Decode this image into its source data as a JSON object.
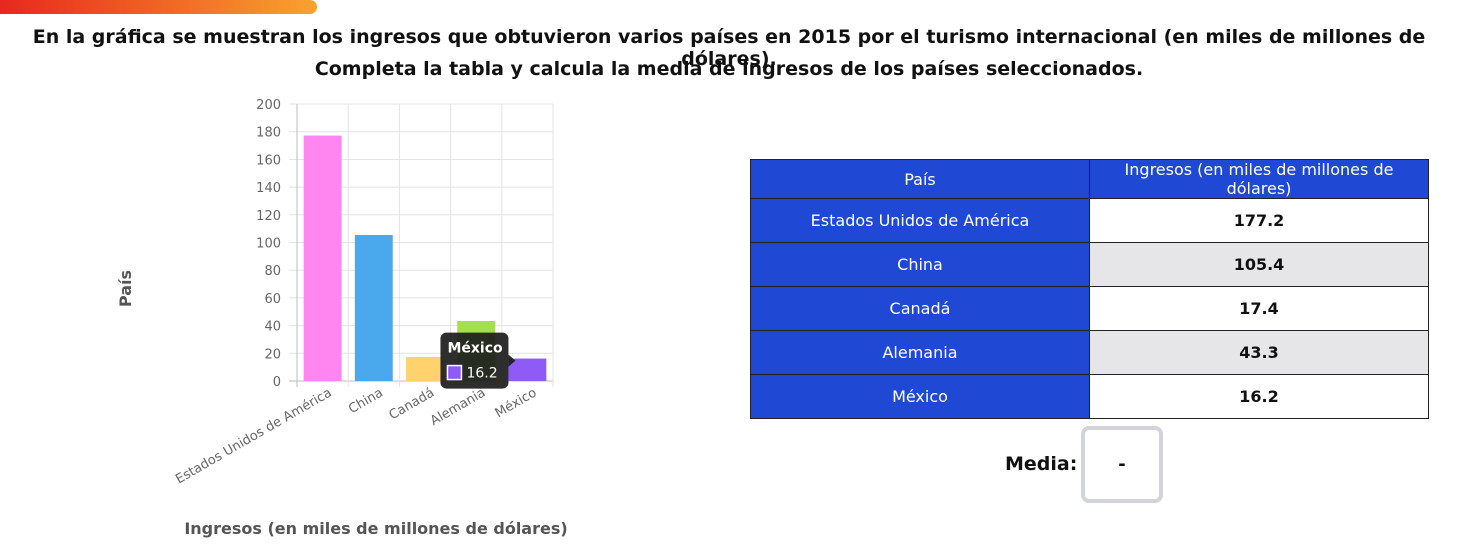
{
  "progress": {
    "fraction": 0.466,
    "color_start": "#e8281e",
    "color_end": "#f8a330"
  },
  "prompt": {
    "line1": "En la gráfica se muestran los ingresos que obtuvieron varios países en 2015 por el turismo internacional (en miles de millones de dólares).",
    "line2": "Completa la tabla y calcula la media de ingresos de los países seleccionados."
  },
  "chart_data": {
    "type": "bar",
    "categories": [
      "Estados Unidos de América",
      "China",
      "Canadá",
      "Alemania",
      "México"
    ],
    "values": [
      177.2,
      105.4,
      17.4,
      43.3,
      16.2
    ],
    "colors": [
      "#ff85f0",
      "#4aa8ec",
      "#ffd26e",
      "#a4e04a",
      "#8f5bf6"
    ],
    "title": "",
    "xlabel": "Ingresos (en miles de millones de dólares)",
    "ylabel": "País",
    "ylim": [
      0,
      200
    ],
    "yticks": [
      0,
      20,
      40,
      60,
      80,
      100,
      120,
      140,
      160,
      180,
      200
    ],
    "grid": true,
    "legend": "none",
    "tooltip": {
      "title": "México",
      "value": "16.2",
      "swatch": "#8f5bf6"
    }
  },
  "table": {
    "headers": [
      "País",
      "Ingresos (en miles de millones de dólares)"
    ],
    "rows": [
      {
        "country": "Estados Unidos de América",
        "value": "177.2"
      },
      {
        "country": "China",
        "value": "105.4"
      },
      {
        "country": "Canadá",
        "value": "17.4"
      },
      {
        "country": "Alemania",
        "value": "43.3"
      },
      {
        "country": "México",
        "value": "16.2"
      }
    ],
    "header_color": "#1f49d4",
    "alt_row_color": "#e6e6e8"
  },
  "media": {
    "label": "Media:",
    "value": "-"
  }
}
